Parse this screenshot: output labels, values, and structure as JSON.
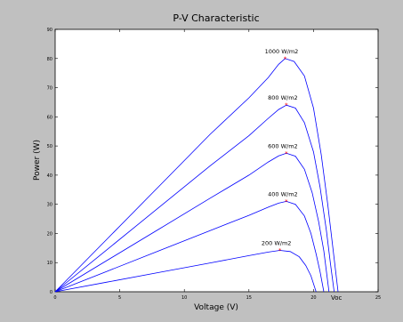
{
  "chart_data": {
    "type": "line",
    "title": "P-V Characteristic",
    "xlabel": "Voltage (V)",
    "ylabel": "Power (W)",
    "xlim": [
      0,
      25
    ],
    "ylim": [
      0,
      90
    ],
    "xticks": [
      0,
      5,
      10,
      15,
      20,
      25
    ],
    "yticks": [
      0,
      10,
      20,
      30,
      40,
      50,
      60,
      70,
      80,
      90
    ],
    "grid": false,
    "line_color": "#0000ff",
    "marker_color": "#ff0000",
    "voc_label": "Voc",
    "series": [
      {
        "name": "1000 W/m2",
        "vmp": 17.8,
        "pmp": 80,
        "voc": 21.9,
        "points": [
          [
            0,
            0
          ],
          [
            4,
            18.0
          ],
          [
            8,
            36.0
          ],
          [
            12,
            54.0
          ],
          [
            15,
            66.5
          ],
          [
            16.5,
            73.5
          ],
          [
            17.3,
            78.0
          ],
          [
            17.8,
            80
          ],
          [
            18.5,
            79.0
          ],
          [
            19.3,
            74.0
          ],
          [
            20.0,
            63.0
          ],
          [
            20.6,
            47.0
          ],
          [
            21.1,
            30.0
          ],
          [
            21.5,
            15.0
          ],
          [
            21.9,
            0
          ]
        ],
        "mpp_label": "1000 W/m2"
      },
      {
        "name": "800 W/m2",
        "vmp": 17.9,
        "pmp": 64,
        "voc": 21.6,
        "points": [
          [
            0,
            0
          ],
          [
            4,
            14.4
          ],
          [
            8,
            28.8
          ],
          [
            12,
            43.2
          ],
          [
            15,
            53.5
          ],
          [
            16.5,
            59.5
          ],
          [
            17.3,
            62.5
          ],
          [
            17.9,
            64
          ],
          [
            18.6,
            63.0
          ],
          [
            19.3,
            58.0
          ],
          [
            20.0,
            48.0
          ],
          [
            20.5,
            36.0
          ],
          [
            21.0,
            21.0
          ],
          [
            21.3,
            10.0
          ],
          [
            21.6,
            0
          ]
        ],
        "mpp_label": "800 W/m2"
      },
      {
        "name": "600 W/m2",
        "vmp": 17.9,
        "pmp": 47.5,
        "voc": 21.2,
        "points": [
          [
            0,
            0
          ],
          [
            4,
            10.7
          ],
          [
            8,
            21.4
          ],
          [
            12,
            32.1
          ],
          [
            15,
            40.0
          ],
          [
            16.5,
            44.5
          ],
          [
            17.3,
            46.6
          ],
          [
            17.9,
            47.5
          ],
          [
            18.6,
            46.5
          ],
          [
            19.3,
            42.0
          ],
          [
            19.9,
            34.0
          ],
          [
            20.4,
            24.0
          ],
          [
            20.8,
            14.0
          ],
          [
            21.0,
            7.0
          ],
          [
            21.2,
            0
          ]
        ],
        "mpp_label": "600 W/m2"
      },
      {
        "name": "400 W/m2",
        "vmp": 17.9,
        "pmp": 31,
        "voc": 20.8,
        "points": [
          [
            0,
            0
          ],
          [
            4,
            7.0
          ],
          [
            8,
            14.0
          ],
          [
            12,
            21.0
          ],
          [
            15,
            26.2
          ],
          [
            16.5,
            29.0
          ],
          [
            17.3,
            30.4
          ],
          [
            17.9,
            31
          ],
          [
            18.6,
            30.0
          ],
          [
            19.3,
            26.0
          ],
          [
            19.8,
            20.0
          ],
          [
            20.2,
            13.0
          ],
          [
            20.5,
            7.0
          ],
          [
            20.8,
            0
          ]
        ],
        "mpp_label": "400 W/m2"
      },
      {
        "name": "200 W/m2",
        "vmp": 17.4,
        "pmp": 14.2,
        "voc": 20.2,
        "points": [
          [
            0,
            0
          ],
          [
            4,
            3.3
          ],
          [
            8,
            6.6
          ],
          [
            12,
            9.9
          ],
          [
            15,
            12.4
          ],
          [
            16.5,
            13.6
          ],
          [
            17.4,
            14.2
          ],
          [
            18.2,
            13.8
          ],
          [
            18.9,
            12.0
          ],
          [
            19.4,
            9.0
          ],
          [
            19.8,
            5.5
          ],
          [
            20.2,
            0
          ]
        ],
        "mpp_label": "200 W/m2"
      }
    ]
  }
}
